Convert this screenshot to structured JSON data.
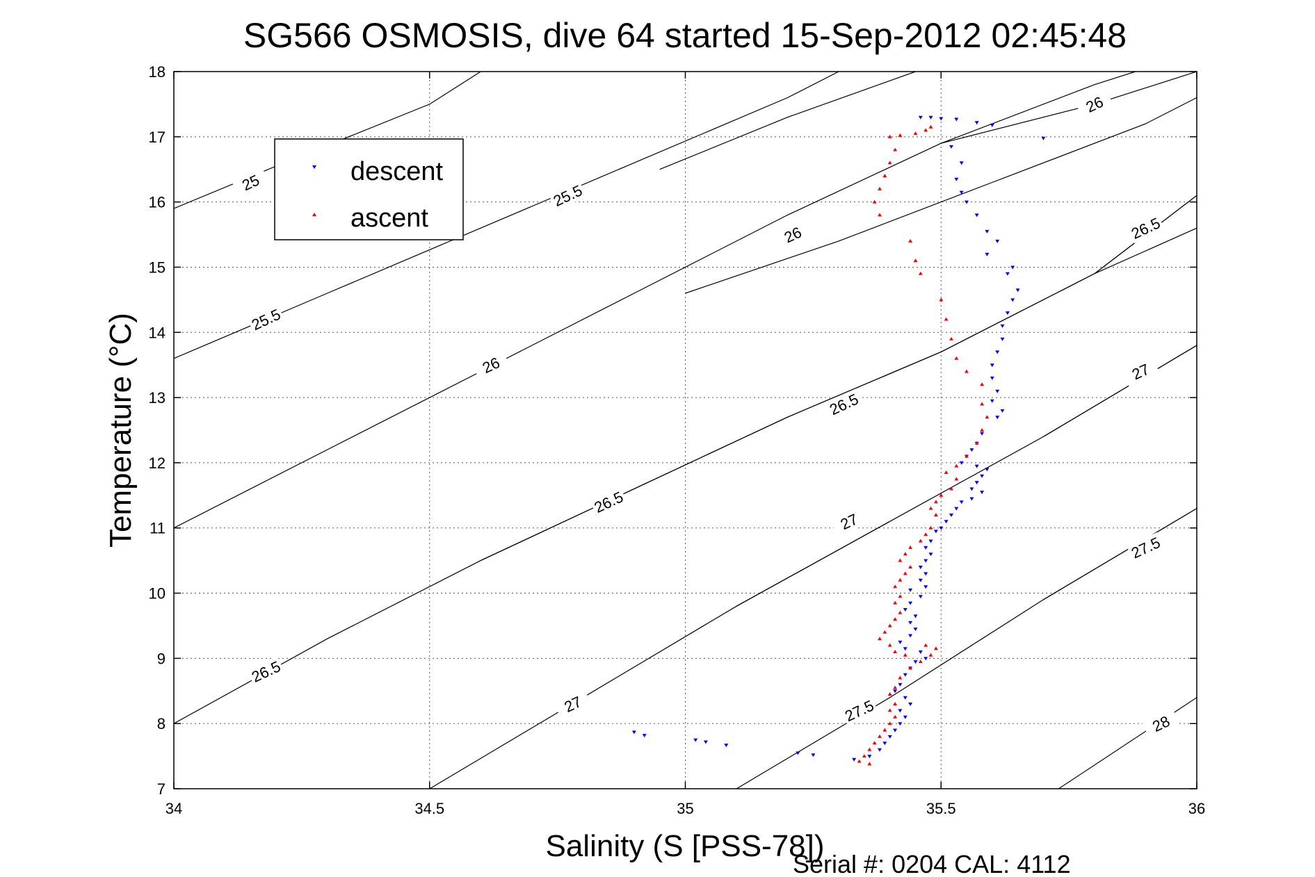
{
  "chart_data": {
    "type": "scatter",
    "title": "SG566 OSMOSIS, dive 64 started 15-Sep-2012 02:45:48",
    "xlabel": "Salinity (S [PSS-78])",
    "ylabel": "Temperature (°C)",
    "xlim": [
      34,
      36
    ],
    "ylim": [
      7,
      18
    ],
    "x_ticks": [
      34,
      34.5,
      35,
      35.5,
      36
    ],
    "x_tick_labels": [
      "34",
      "34.5",
      "35",
      "35.5",
      "36"
    ],
    "y_ticks": [
      7,
      8,
      9,
      10,
      11,
      12,
      13,
      14,
      15,
      16,
      17,
      18
    ],
    "y_tick_labels": [
      "7",
      "8",
      "9",
      "10",
      "11",
      "12",
      "13",
      "14",
      "15",
      "16",
      "17",
      "18"
    ],
    "grid": true,
    "legend_position": "top-left",
    "footer": "Serial #: 0204  CAL: 4112",
    "series": [
      {
        "name": "descent",
        "color": "#0000ff",
        "marker": "triangle-down",
        "points": [
          [
            35.46,
            17.3
          ],
          [
            35.48,
            17.3
          ],
          [
            35.5,
            17.28
          ],
          [
            35.53,
            17.27
          ],
          [
            35.57,
            17.22
          ],
          [
            35.6,
            17.18
          ],
          [
            35.7,
            16.98
          ],
          [
            35.52,
            16.85
          ],
          [
            35.54,
            16.6
          ],
          [
            35.53,
            16.35
          ],
          [
            35.54,
            16.15
          ],
          [
            35.55,
            16.0
          ],
          [
            35.57,
            15.8
          ],
          [
            35.59,
            15.55
          ],
          [
            35.61,
            15.4
          ],
          [
            35.59,
            15.2
          ],
          [
            35.64,
            15.0
          ],
          [
            35.63,
            14.9
          ],
          [
            35.65,
            14.65
          ],
          [
            35.64,
            14.5
          ],
          [
            35.63,
            14.3
          ],
          [
            35.62,
            14.1
          ],
          [
            35.62,
            13.9
          ],
          [
            35.61,
            13.7
          ],
          [
            35.6,
            13.5
          ],
          [
            35.6,
            13.3
          ],
          [
            35.61,
            13.1
          ],
          [
            35.6,
            12.95
          ],
          [
            35.62,
            12.8
          ],
          [
            35.61,
            12.7
          ],
          [
            35.58,
            12.45
          ],
          [
            35.57,
            12.3
          ],
          [
            35.56,
            12.2
          ],
          [
            35.55,
            12.1
          ],
          [
            35.54,
            12.0
          ],
          [
            35.57,
            11.95
          ],
          [
            35.59,
            11.9
          ],
          [
            35.58,
            11.8
          ],
          [
            35.57,
            11.7
          ],
          [
            35.56,
            11.6
          ],
          [
            35.58,
            11.55
          ],
          [
            35.56,
            11.45
          ],
          [
            35.54,
            11.4
          ],
          [
            35.53,
            11.3
          ],
          [
            35.52,
            11.2
          ],
          [
            35.51,
            11.1
          ],
          [
            35.5,
            11.0
          ],
          [
            35.49,
            10.95
          ],
          [
            35.48,
            10.8
          ],
          [
            35.47,
            10.7
          ],
          [
            35.48,
            10.6
          ],
          [
            35.47,
            10.5
          ],
          [
            35.46,
            10.4
          ],
          [
            35.47,
            10.3
          ],
          [
            35.46,
            10.2
          ],
          [
            35.47,
            10.1
          ],
          [
            35.44,
            10.05
          ],
          [
            35.46,
            9.95
          ],
          [
            35.44,
            9.85
          ],
          [
            35.43,
            9.75
          ],
          [
            35.45,
            9.65
          ],
          [
            35.44,
            9.55
          ],
          [
            35.45,
            9.45
          ],
          [
            35.44,
            9.35
          ],
          [
            35.42,
            9.25
          ],
          [
            35.43,
            9.15
          ],
          [
            35.46,
            9.1
          ],
          [
            35.47,
            9.0
          ],
          [
            35.45,
            8.95
          ],
          [
            35.44,
            8.85
          ],
          [
            35.43,
            8.75
          ],
          [
            35.42,
            8.6
          ],
          [
            35.41,
            8.5
          ],
          [
            35.43,
            8.4
          ],
          [
            35.44,
            8.3
          ],
          [
            35.42,
            8.2
          ],
          [
            35.43,
            8.1
          ],
          [
            35.42,
            8.0
          ],
          [
            35.41,
            7.9
          ],
          [
            35.4,
            7.8
          ],
          [
            35.39,
            7.7
          ],
          [
            35.38,
            7.6
          ],
          [
            35.36,
            7.5
          ],
          [
            35.33,
            7.45
          ],
          [
            35.25,
            7.52
          ],
          [
            35.22,
            7.55
          ],
          [
            35.08,
            7.67
          ],
          [
            35.04,
            7.72
          ],
          [
            35.02,
            7.75
          ],
          [
            34.92,
            7.82
          ],
          [
            34.9,
            7.87
          ]
        ]
      },
      {
        "name": "ascent",
        "color": "#ff0000",
        "marker": "triangle-up",
        "points": [
          [
            35.48,
            17.15
          ],
          [
            35.47,
            17.1
          ],
          [
            35.45,
            17.05
          ],
          [
            35.42,
            17.02
          ],
          [
            35.4,
            17.0
          ],
          [
            35.41,
            16.8
          ],
          [
            35.4,
            16.6
          ],
          [
            35.39,
            16.4
          ],
          [
            35.38,
            16.2
          ],
          [
            35.37,
            16.0
          ],
          [
            35.38,
            15.8
          ],
          [
            35.44,
            15.4
          ],
          [
            35.45,
            15.1
          ],
          [
            35.46,
            14.9
          ],
          [
            35.5,
            14.5
          ],
          [
            35.51,
            14.2
          ],
          [
            35.52,
            13.9
          ],
          [
            35.53,
            13.6
          ],
          [
            35.55,
            13.4
          ],
          [
            35.58,
            13.2
          ],
          [
            35.58,
            12.9
          ],
          [
            35.59,
            12.7
          ],
          [
            35.58,
            12.5
          ],
          [
            35.57,
            12.3
          ],
          [
            35.55,
            12.1
          ],
          [
            35.53,
            11.95
          ],
          [
            35.51,
            11.85
          ],
          [
            35.53,
            11.75
          ],
          [
            35.52,
            11.6
          ],
          [
            35.5,
            11.5
          ],
          [
            35.49,
            11.4
          ],
          [
            35.48,
            11.3
          ],
          [
            35.49,
            11.2
          ],
          [
            35.48,
            11.0
          ],
          [
            35.47,
            10.9
          ],
          [
            35.46,
            10.8
          ],
          [
            35.44,
            10.7
          ],
          [
            35.43,
            10.6
          ],
          [
            35.42,
            10.5
          ],
          [
            35.44,
            10.4
          ],
          [
            35.43,
            10.3
          ],
          [
            35.42,
            10.2
          ],
          [
            35.41,
            10.1
          ],
          [
            35.42,
            9.95
          ],
          [
            35.41,
            9.85
          ],
          [
            35.42,
            9.7
          ],
          [
            35.41,
            9.6
          ],
          [
            35.4,
            9.5
          ],
          [
            35.39,
            9.4
          ],
          [
            35.38,
            9.3
          ],
          [
            35.4,
            9.2
          ],
          [
            35.41,
            9.1
          ],
          [
            35.43,
            9.05
          ],
          [
            35.47,
            9.2
          ],
          [
            35.49,
            9.15
          ],
          [
            35.48,
            9.05
          ],
          [
            35.46,
            8.95
          ],
          [
            35.44,
            8.85
          ],
          [
            35.42,
            8.7
          ],
          [
            35.41,
            8.55
          ],
          [
            35.4,
            8.45
          ],
          [
            35.41,
            8.3
          ],
          [
            35.4,
            8.2
          ],
          [
            35.41,
            8.1
          ],
          [
            35.4,
            8.0
          ],
          [
            35.39,
            7.9
          ],
          [
            35.38,
            7.8
          ],
          [
            35.37,
            7.7
          ],
          [
            35.36,
            7.6
          ],
          [
            35.35,
            7.5
          ],
          [
            35.34,
            7.42
          ],
          [
            35.36,
            7.38
          ]
        ]
      }
    ],
    "contours": [
      {
        "label": "25",
        "points": [
          [
            34,
            15.9
          ],
          [
            34.2,
            16.55
          ],
          [
            34.5,
            17.5
          ],
          [
            34.6,
            18
          ]
        ],
        "label_at": [
          34.15,
          16.3
        ]
      },
      {
        "label": "25.5",
        "points": [
          [
            34,
            13.6
          ],
          [
            34.3,
            14.6
          ],
          [
            34.6,
            15.6
          ],
          [
            34.9,
            16.6
          ],
          [
            35.2,
            17.6
          ],
          [
            35.3,
            18
          ]
        ],
        "label_at": [
          34.18,
          14.2
        ]
      },
      {
        "label": "25.5",
        "points": [
          [
            34.95,
            16.5
          ],
          [
            35.2,
            17.3
          ],
          [
            35.45,
            18
          ]
        ],
        "label_at": [
          34.77,
          16.1
        ]
      },
      {
        "label": "26",
        "points": [
          [
            34,
            11.0
          ],
          [
            34.3,
            12.2
          ],
          [
            34.6,
            13.4
          ],
          [
            34.9,
            14.6
          ],
          [
            35.2,
            15.8
          ],
          [
            35.5,
            16.9
          ],
          [
            35.8,
            17.8
          ],
          [
            35.88,
            18
          ]
        ],
        "label_at": [
          34.62,
          13.5
        ]
      },
      {
        "label": "26",
        "points": [
          [
            35.0,
            14.6
          ],
          [
            35.3,
            15.4
          ],
          [
            35.6,
            16.3
          ],
          [
            35.9,
            17.2
          ],
          [
            36,
            17.6
          ]
        ],
        "label_at": [
          35.21,
          15.5
        ]
      },
      {
        "label": "26",
        "points": [
          [
            35.5,
            16.9
          ],
          [
            35.8,
            17.5
          ],
          [
            36,
            18
          ]
        ],
        "label_at": [
          35.8,
          17.5
        ]
      },
      {
        "label": "26.5",
        "points": [
          [
            34,
            8.0
          ],
          [
            34.3,
            9.3
          ],
          [
            34.6,
            10.5
          ],
          [
            34.9,
            11.6
          ],
          [
            35.2,
            12.7
          ],
          [
            35.5,
            13.7
          ],
          [
            35.8,
            14.9
          ],
          [
            36,
            16.1
          ]
        ],
        "label_at": [
          34.18,
          8.8
        ]
      },
      {
        "label": "26.5",
        "points": [
          [
            34.6,
            10.5
          ],
          [
            34.9,
            11.6
          ],
          [
            35.2,
            12.7
          ],
          [
            35.5,
            13.7
          ]
        ],
        "label_at": [
          34.85,
          11.4
        ]
      },
      {
        "label": "26.5",
        "points": [
          [
            35.5,
            13.7
          ],
          [
            35.8,
            14.9
          ],
          [
            36,
            16.1
          ]
        ],
        "label_at": [
          35.31,
          12.9
        ]
      },
      {
        "label": "26.5",
        "points": [
          [
            35.8,
            14.9
          ],
          [
            36,
            15.6
          ]
        ],
        "label_at": [
          35.9,
          15.6
        ]
      },
      {
        "label": "27",
        "points": [
          [
            34.5,
            7.0
          ],
          [
            34.8,
            8.4
          ],
          [
            35.1,
            9.8
          ],
          [
            35.4,
            11.1
          ],
          [
            35.7,
            12.4
          ],
          [
            36,
            13.8
          ]
        ],
        "label_at": [
          34.78,
          8.3
        ]
      },
      {
        "label": "27",
        "points": [
          [
            35.1,
            9.8
          ],
          [
            35.4,
            11.1
          ]
        ],
        "label_at": [
          35.32,
          11.1
        ]
      },
      {
        "label": "27",
        "points": [
          [
            35.7,
            12.4
          ],
          [
            36,
            13.8
          ]
        ],
        "label_at": [
          35.89,
          13.4
        ]
      },
      {
        "label": "27.5",
        "points": [
          [
            35.1,
            7.0
          ],
          [
            35.4,
            8.4
          ],
          [
            35.7,
            9.9
          ],
          [
            36,
            11.3
          ]
        ],
        "label_at": [
          35.34,
          8.2
        ]
      },
      {
        "label": "27.5",
        "points": [
          [
            35.7,
            9.9
          ],
          [
            36,
            11.3
          ]
        ],
        "label_at": [
          35.9,
          10.7
        ]
      },
      {
        "label": "28",
        "points": [
          [
            35.73,
            7.0
          ],
          [
            36,
            8.4
          ]
        ],
        "label_at": [
          35.93,
          8.0
        ]
      }
    ]
  }
}
